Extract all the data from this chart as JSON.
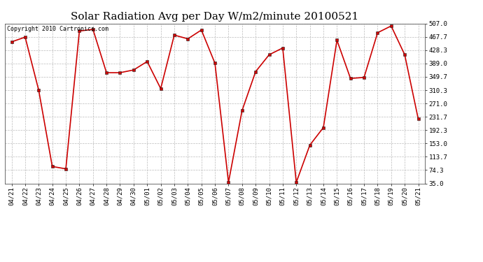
{
  "title": "Solar Radiation Avg per Day W/m2/minute 20100521",
  "copyright": "Copyright 2010 Cartronics.com",
  "dates": [
    "04/21",
    "04/22",
    "04/23",
    "04/24",
    "04/25",
    "04/26",
    "04/27",
    "04/28",
    "04/29",
    "04/30",
    "05/01",
    "05/02",
    "05/03",
    "05/04",
    "05/05",
    "05/06",
    "05/07",
    "05/08",
    "05/09",
    "05/10",
    "05/11",
    "05/12",
    "05/13",
    "05/14",
    "05/15",
    "05/16",
    "05/17",
    "05/18",
    "05/19",
    "05/20",
    "05/21"
  ],
  "values": [
    453,
    467,
    310,
    85,
    78,
    485,
    490,
    362,
    362,
    370,
    395,
    315,
    473,
    462,
    488,
    390,
    38,
    250,
    365,
    415,
    435,
    38,
    148,
    200,
    458,
    345,
    348,
    480,
    500,
    415,
    225
  ],
  "yticks": [
    35.0,
    74.3,
    113.7,
    153.0,
    192.3,
    231.7,
    271.0,
    310.3,
    349.7,
    389.0,
    428.3,
    467.7,
    507.0
  ],
  "ymin": 35.0,
  "ymax": 507.0,
  "line_color": "#cc0000",
  "marker_color": "#cc0000",
  "bg_color": "#ffffff",
  "grid_color": "#bbbbbb",
  "title_fontsize": 11,
  "copyright_fontsize": 6,
  "tick_fontsize": 6.5
}
